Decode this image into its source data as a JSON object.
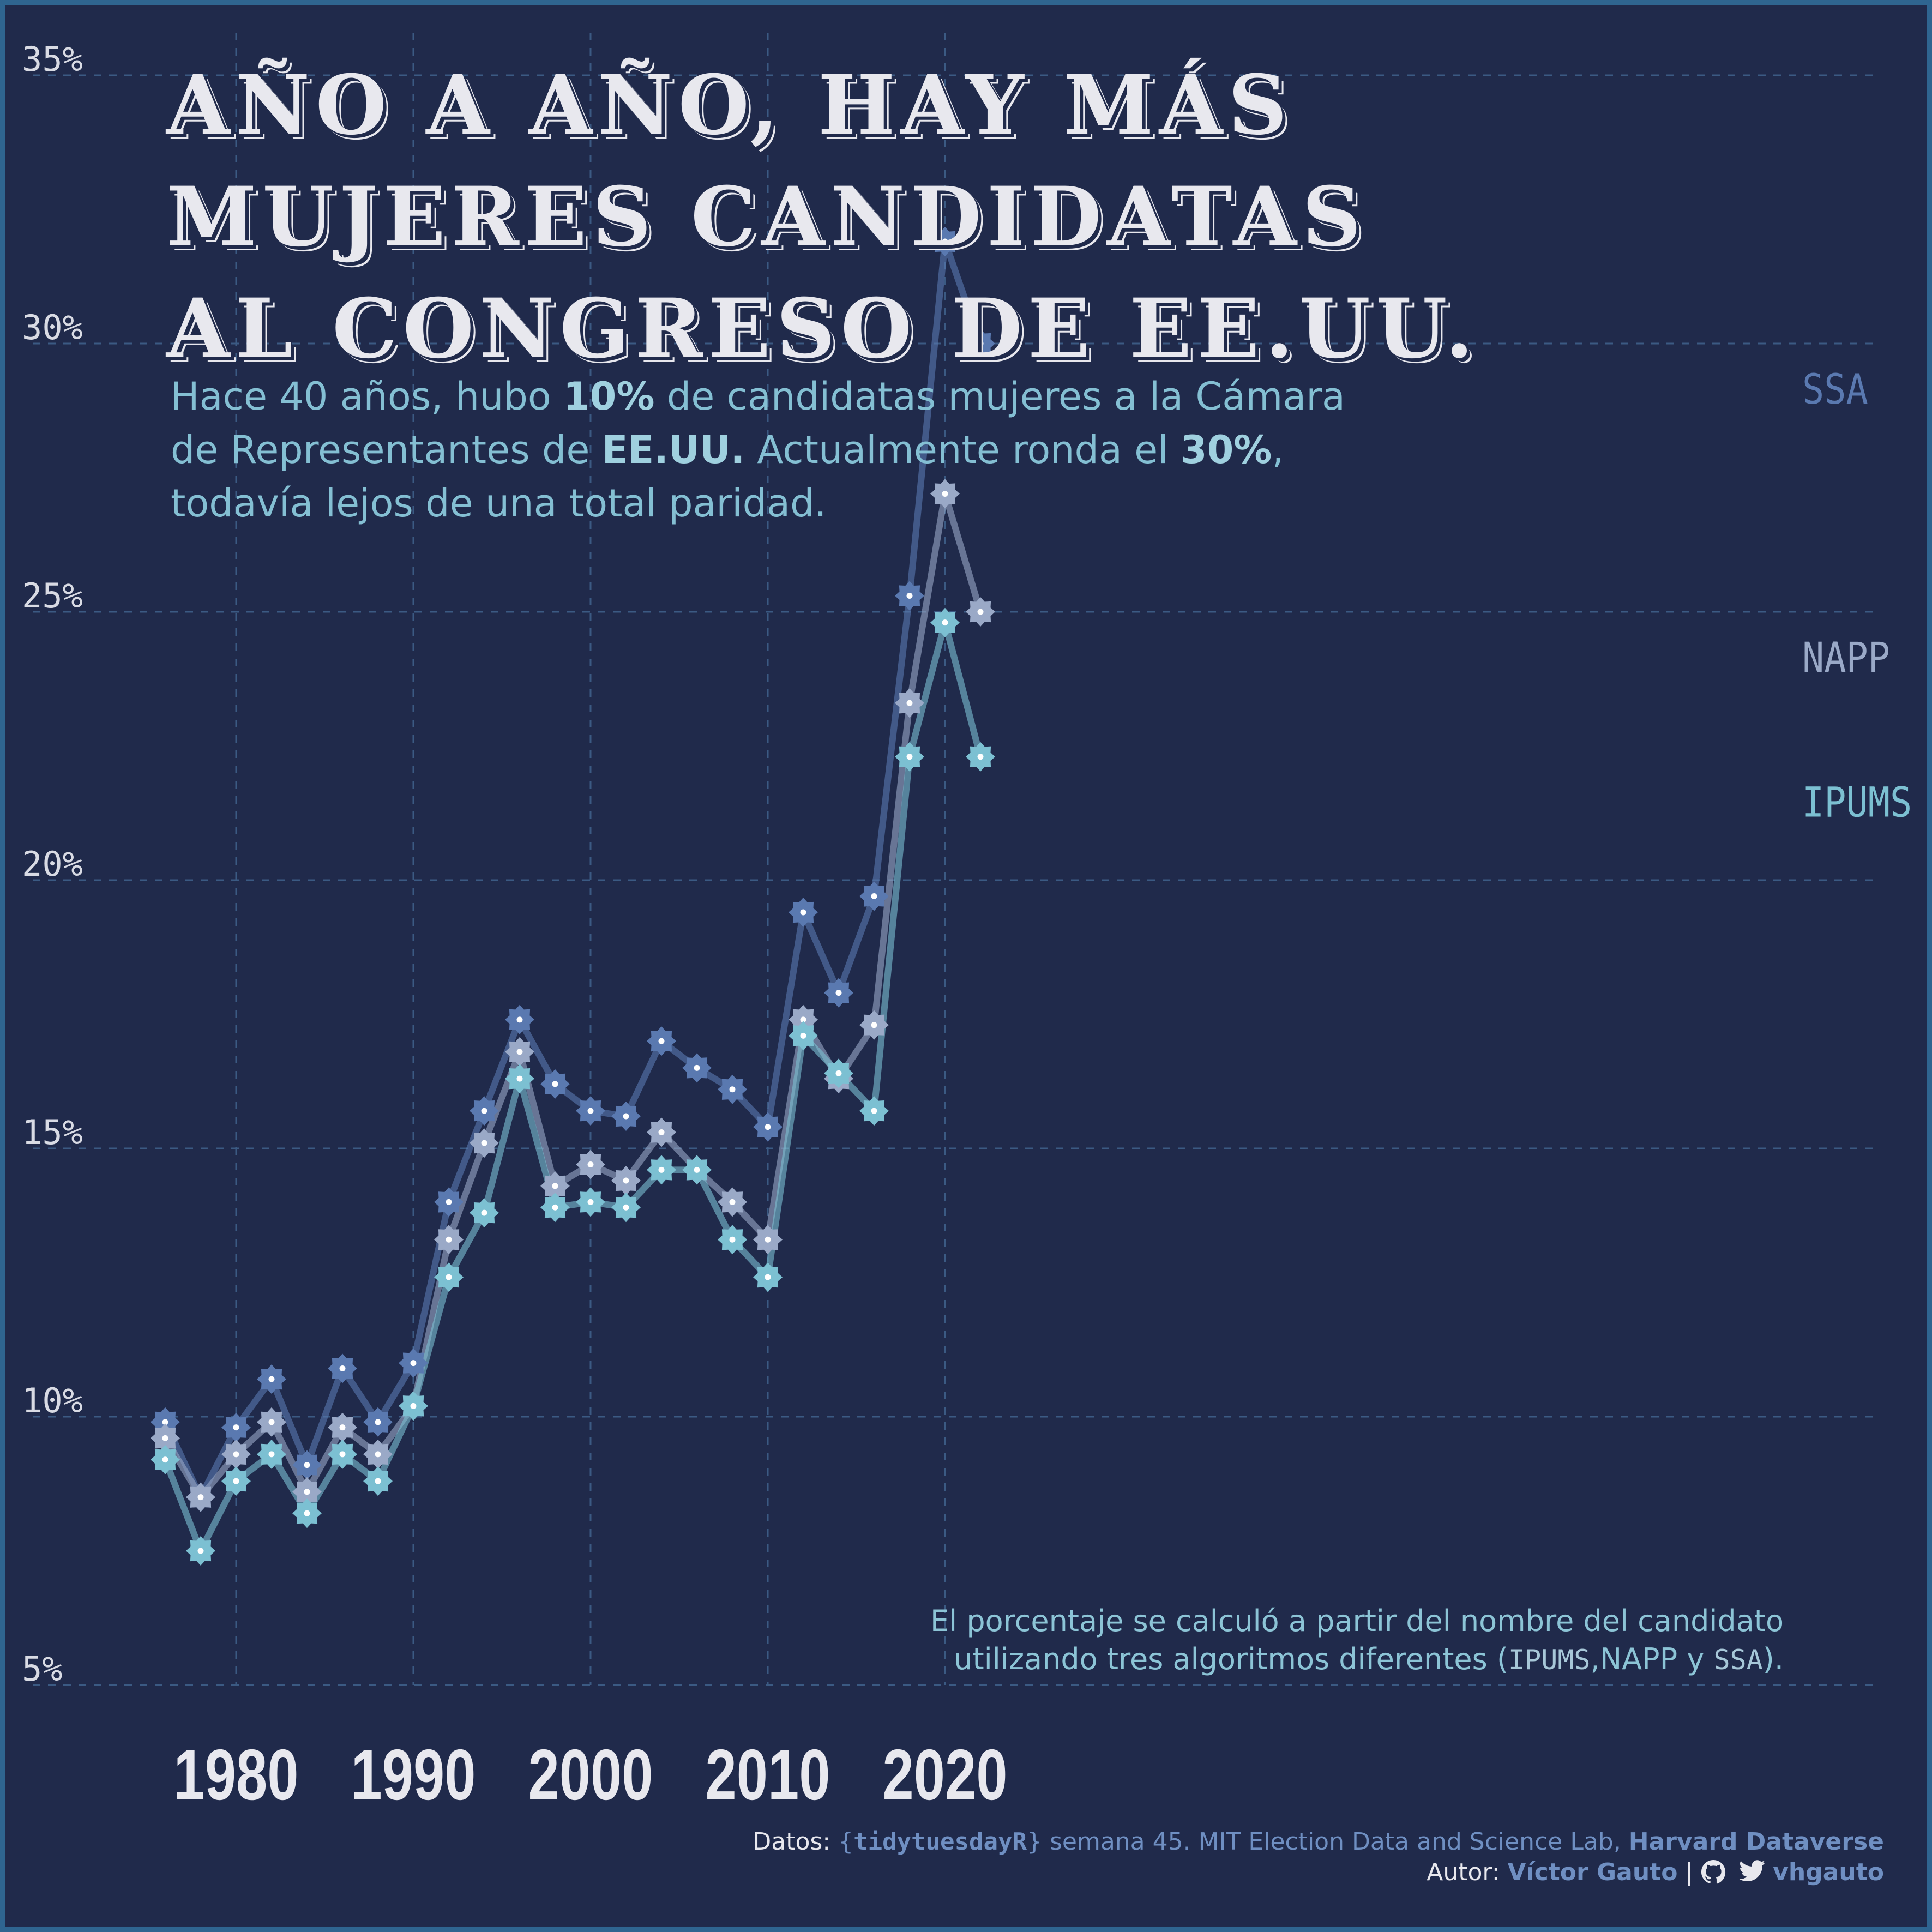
{
  "title": {
    "lines": [
      "AÑO A AÑO, HAY MÁS",
      "MUJERES CANDIDATAS",
      "AL CONGRESO DE EE.UU."
    ]
  },
  "subtitle": {
    "line1_a": "Hace 40 años, hubo ",
    "line1_b": "10%",
    "line1_c": " de candidatas mujeres a la Cámara",
    "line2_a": "de Representantes de ",
    "line2_b": "EE.UU.",
    "line2_c": " Actualmente ronda el ",
    "line2_d": "30%",
    "line2_e": ",",
    "line3": "todavía lejos de una total paridad."
  },
  "note": {
    "line1": "El porcentaje se calculó a partir del nombre del candidato",
    "line2_a": "utilizando tres algoritmos diferentes (",
    "line2_b": "IPUMS",
    "line2_c": ",NAPP y ",
    "line2_d": "SSA",
    "line2_e": ")."
  },
  "credits": {
    "datos_label": "Datos: ",
    "brace_open": "{",
    "package": "tidytuesdayR",
    "brace_close": "}",
    "week": " semana 45.",
    "source": " MIT Election Data and Science Lab, ",
    "dataverse": "Harvard Dataverse",
    "autor_label": "Autor: ",
    "author": "Víctor Gauto",
    "separator": " | ",
    "handle": " vhgauto"
  },
  "colors": {
    "background": "#202a4b",
    "border": "#2f6590",
    "grid": "#3b5a83",
    "SSA": "#5a79b0",
    "NAPP": "#9aa9c7",
    "IPUMS": "#7cc0d2",
    "text": "#e8e8ee",
    "accent": "#84bfd3"
  },
  "icons": [
    "github-icon",
    "twitter-icon"
  ],
  "chart_data": {
    "type": "line",
    "title": "AÑO A AÑO, HAY MÁS MUJERES CANDIDATAS AL CONGRESO DE EE.UU.",
    "xlabel": "",
    "ylabel": "",
    "xlim": [
      1972,
      2025
    ],
    "ylim": [
      3.5,
      36
    ],
    "x_ticks": [
      1980,
      1990,
      2000,
      2010,
      2020
    ],
    "x_tick_labels": [
      "1980",
      "1990",
      "2000",
      "2010",
      "2020"
    ],
    "y_ticks": [
      5,
      10,
      15,
      20,
      25,
      30,
      35
    ],
    "y_tick_labels": [
      "5%",
      "10%",
      "15%",
      "20%",
      "25%",
      "30%",
      "35%"
    ],
    "grid": true,
    "legend": "direct labels at right end of each line",
    "x": [
      1976,
      1978,
      1980,
      1982,
      1984,
      1986,
      1988,
      1990,
      1992,
      1994,
      1996,
      1998,
      2000,
      2002,
      2004,
      2006,
      2008,
      2010,
      2012,
      2014,
      2016,
      2018,
      2020,
      2022
    ],
    "series": [
      {
        "name": "SSA",
        "values": [
          9.9,
          8.5,
          9.8,
          10.7,
          9.1,
          10.9,
          9.9,
          11.0,
          14.0,
          15.7,
          17.4,
          16.2,
          15.7,
          15.6,
          17.0,
          16.5,
          16.1,
          15.4,
          19.4,
          17.9,
          19.7,
          25.3,
          31.9,
          30.0
        ]
      },
      {
        "name": "NAPP",
        "values": [
          9.6,
          8.5,
          9.3,
          9.9,
          8.6,
          9.8,
          9.3,
          10.2,
          13.3,
          15.1,
          16.8,
          14.3,
          14.7,
          14.4,
          15.3,
          14.6,
          14.0,
          13.3,
          17.4,
          16.3,
          17.3,
          23.3,
          27.2,
          25.0
        ]
      },
      {
        "name": "IPUMS",
        "values": [
          9.2,
          7.5,
          8.8,
          9.3,
          8.2,
          9.3,
          8.8,
          10.2,
          12.6,
          13.8,
          16.3,
          13.9,
          14.0,
          13.9,
          14.6,
          14.6,
          13.3,
          12.6,
          17.1,
          16.4,
          15.7,
          22.3,
          24.8,
          22.3
        ]
      }
    ]
  }
}
